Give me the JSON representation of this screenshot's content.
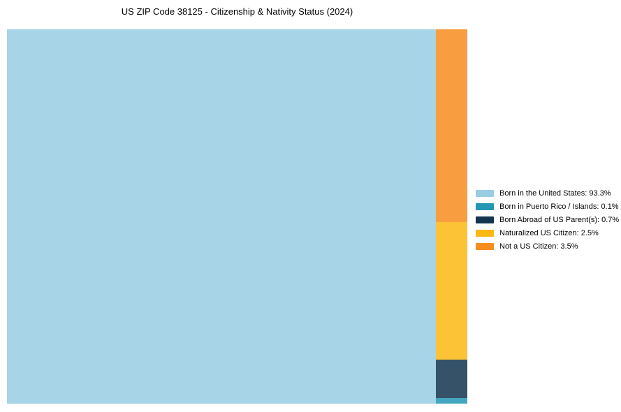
{
  "page": {
    "background": "#ffffff"
  },
  "chart_data": {
    "type": "treemap",
    "title": "US ZIP Code 38125 - Citizenship & Nativity Status (2024)",
    "unit": "%",
    "slices": [
      {
        "key": "born-in-the-united-states",
        "label": "Born in the United States",
        "value": 93.3,
        "color": "#99cde3"
      },
      {
        "key": "born-in-puerto-rico-islands",
        "label": "Born in Puerto Rico / Islands",
        "value": 0.1,
        "color": "#2397b4"
      },
      {
        "key": "born-abroad-of-us-parents",
        "label": "Born Abroad of US Parent(s)",
        "value": 0.7,
        "color": "#12344d"
      },
      {
        "key": "naturalized-us-citizen",
        "label": "Naturalized US Citizen",
        "value": 2.5,
        "color": "#fcb813"
      },
      {
        "key": "not-a-us-citizen",
        "label": "Not a US Citizen",
        "value": 3.5,
        "color": "#f78d1e"
      }
    ],
    "layout": {
      "main_slice": "born-in-the-united-states",
      "right_column_top_to_bottom": [
        "not-a-us-citizen",
        "naturalized-us-citizen",
        "born-abroad-of-us-parents",
        "born-in-puerto-rico-islands"
      ],
      "legend_position": "right-center",
      "grid": false,
      "block_opacity": 0.85
    }
  }
}
